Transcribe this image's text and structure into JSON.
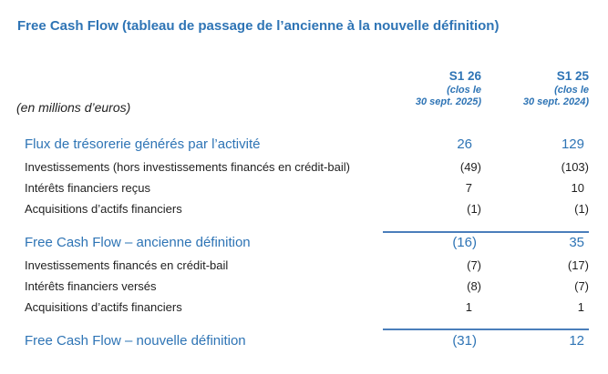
{
  "title": "Free Cash Flow (tableau de passage de l’ancienne à la nouvelle définition)",
  "unit_label": "(en millions d’euros)",
  "columns": [
    {
      "period": "S1 26",
      "closing_line1": "(clos le",
      "closing_line2": "30 sept. 2025)"
    },
    {
      "period": "S1 25",
      "closing_line1": "(clos le",
      "closing_line2": "30 sept. 2024)"
    }
  ],
  "rows": [
    {
      "label": "Flux de trésorerie générés par l’activité",
      "s1_26": "26",
      "s1_25": "129",
      "emphasis": true
    },
    {
      "label": "Investissements (hors investissements financés en crédit-bail)",
      "s1_26": "(49)",
      "s1_25": "(103)",
      "emphasis": false
    },
    {
      "label": "Intérêts financiers reçus",
      "s1_26": "7",
      "s1_25": "10",
      "emphasis": false
    },
    {
      "label": "Acquisitions d’actifs financiers",
      "s1_26": "(1)",
      "s1_25": "(1)",
      "emphasis": false
    },
    {
      "label": "Free Cash Flow – ancienne définition",
      "s1_26": "(16)",
      "s1_25": "35",
      "emphasis": true
    },
    {
      "label": "Investissements financés en crédit-bail",
      "s1_26": "(7)",
      "s1_25": "(17)",
      "emphasis": false
    },
    {
      "label": "Intérêts financiers versés",
      "s1_26": "(8)",
      "s1_25": "(7)",
      "emphasis": false
    },
    {
      "label": "Acquisitions d’actifs financiers",
      "s1_26": "1",
      "s1_25": "1",
      "emphasis": false
    },
    {
      "label": "Free Cash Flow – nouvelle définition",
      "s1_26": "(31)",
      "s1_25": "12",
      "emphasis": true
    }
  ],
  "colors": {
    "accent_blue": "#2E74B5",
    "rule_blue": "#4A7EBB",
    "text_black": "#1F1F1F",
    "background": "#FFFFFF"
  }
}
